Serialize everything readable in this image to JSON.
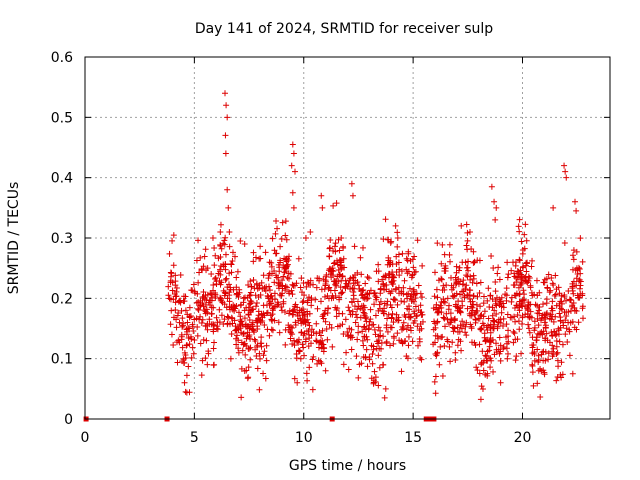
{
  "chart_data": {
    "type": "scatter",
    "title": "Day 141 of 2024, SRMTID for receiver sulp",
    "xlabel": "GPS time / hours",
    "ylabel": "SRMTID / TECUs",
    "xlim": [
      0,
      24
    ],
    "ylim": [
      0,
      0.6
    ],
    "x_ticks": [
      0,
      5,
      10,
      15,
      20
    ],
    "y_ticks": [
      0,
      0.1,
      0.2,
      0.3,
      0.4,
      0.5,
      0.6
    ],
    "x_tick_labels": [
      "0",
      "5",
      "10",
      "15",
      "20"
    ],
    "y_tick_labels": [
      "0",
      "0.1",
      "0.2",
      "0.3",
      "0.4",
      "0.5",
      "0.6"
    ],
    "grid": true,
    "marker": "+",
    "series_color": "#dd0000",
    "zero_markers_x": [
      0.05,
      3.75,
      11.3,
      15.6,
      15.75,
      15.85,
      15.95
    ],
    "segments": [
      {
        "start": 3.8,
        "end": 15.45,
        "mean": 0.185,
        "spread": 0.055
      },
      {
        "start": 15.9,
        "end": 22.8,
        "mean": 0.18,
        "spread": 0.055
      }
    ],
    "peaks": [
      {
        "x": 6.4,
        "y": 0.54
      },
      {
        "x": 6.45,
        "y": 0.52
      },
      {
        "x": 6.5,
        "y": 0.5
      },
      {
        "x": 6.42,
        "y": 0.47
      },
      {
        "x": 6.44,
        "y": 0.44
      },
      {
        "x": 6.5,
        "y": 0.38
      },
      {
        "x": 6.55,
        "y": 0.35
      },
      {
        "x": 6.6,
        "y": 0.31
      },
      {
        "x": 9.5,
        "y": 0.455
      },
      {
        "x": 9.55,
        "y": 0.44
      },
      {
        "x": 9.45,
        "y": 0.42
      },
      {
        "x": 9.6,
        "y": 0.41
      },
      {
        "x": 9.5,
        "y": 0.375
      },
      {
        "x": 9.55,
        "y": 0.35
      },
      {
        "x": 10.8,
        "y": 0.37
      },
      {
        "x": 10.85,
        "y": 0.35
      },
      {
        "x": 12.2,
        "y": 0.39
      },
      {
        "x": 12.25,
        "y": 0.37
      },
      {
        "x": 14.2,
        "y": 0.32
      },
      {
        "x": 14.3,
        "y": 0.3
      },
      {
        "x": 18.6,
        "y": 0.385
      },
      {
        "x": 18.7,
        "y": 0.36
      },
      {
        "x": 18.8,
        "y": 0.35
      },
      {
        "x": 18.75,
        "y": 0.33
      },
      {
        "x": 21.9,
        "y": 0.42
      },
      {
        "x": 21.95,
        "y": 0.41
      },
      {
        "x": 22.0,
        "y": 0.4
      },
      {
        "x": 22.4,
        "y": 0.36
      },
      {
        "x": 22.45,
        "y": 0.345
      },
      {
        "x": 17.2,
        "y": 0.32
      },
      {
        "x": 17.6,
        "y": 0.31
      },
      {
        "x": 21.4,
        "y": 0.35
      },
      {
        "x": 7.1,
        "y": 0.295
      },
      {
        "x": 7.3,
        "y": 0.29
      },
      {
        "x": 10.1,
        "y": 0.3
      },
      {
        "x": 10.3,
        "y": 0.31
      }
    ],
    "lows": [
      {
        "x": 4.6,
        "y": 0.045
      },
      {
        "x": 4.55,
        "y": 0.06
      },
      {
        "x": 9.7,
        "y": 0.06
      },
      {
        "x": 13.7,
        "y": 0.035
      },
      {
        "x": 13.75,
        "y": 0.05
      },
      {
        "x": 16.2,
        "y": 0.09
      },
      {
        "x": 19.0,
        "y": 0.06
      },
      {
        "x": 20.5,
        "y": 0.055
      },
      {
        "x": 22.3,
        "y": 0.075
      },
      {
        "x": 11.0,
        "y": 0.08
      },
      {
        "x": 5.9,
        "y": 0.09
      }
    ]
  }
}
